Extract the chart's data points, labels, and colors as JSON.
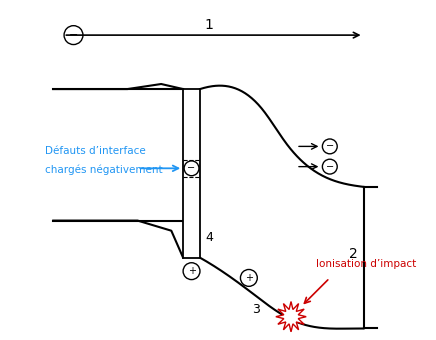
{
  "fig_width": 4.36,
  "fig_height": 3.4,
  "dpi": 100,
  "bg_color": "#ffffff",
  "label1": "1",
  "label2": "2",
  "label3": "3",
  "label4": "4",
  "label_defauts_line1": "Défauts d’interface",
  "label_defauts_line2": "chargés négativement",
  "label_ionisation": "Ionisation d’impact",
  "arrow_color": "#2196F3",
  "ionisation_color": "#cc0000",
  "main_color": "#000000"
}
